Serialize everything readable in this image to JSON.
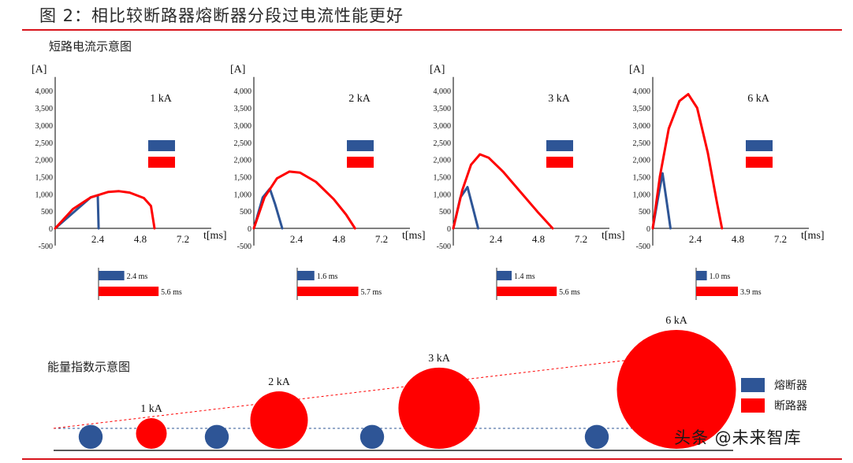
{
  "figure_title": "图 2：相比较断路器熔断器分段过电流性能更好",
  "section1_title": "短路电流示意图",
  "section2_title": "能量指数示意图",
  "watermark": "头条 @未来智库",
  "colors": {
    "fuse": "#2e5596",
    "breaker": "#ff0000",
    "accent_rule": "#d8141c",
    "axis": "#000000"
  },
  "chart_data": [
    {
      "type": "line",
      "subplot": 1,
      "label": "1 kA",
      "ylabel": "[A]",
      "xlabel": "t[ms]",
      "yticks": [
        "-500",
        "0",
        "500",
        "1,000",
        "1,500",
        "2,000",
        "2,500",
        "3,000",
        "3,500",
        "4,000"
      ],
      "ytick_values": [
        -500,
        0,
        500,
        1000,
        1500,
        2000,
        2500,
        3000,
        3500,
        4000
      ],
      "xticks": [
        "2.4",
        "4.8",
        "7.2"
      ],
      "xtick_values": [
        2.4,
        4.8,
        7.2
      ],
      "xlim": [
        0,
        8.8
      ],
      "ylim": [
        -500,
        4400
      ],
      "series": [
        {
          "x": [
            0,
            2.0,
            2.4,
            2.45
          ],
          "y": [
            0,
            900,
            960,
            0
          ]
        },
        {
          "x": [
            0,
            1.0,
            2.0,
            3.0,
            3.6,
            4.2,
            5.0,
            5.4,
            5.6
          ],
          "y": [
            0,
            560,
            900,
            1060,
            1080,
            1040,
            880,
            650,
            0
          ]
        }
      ],
      "durations": [
        {
          "value": 2.4,
          "label": "2.4 ms"
        },
        {
          "value": 5.6,
          "label": "5.6 ms"
        }
      ]
    },
    {
      "type": "line",
      "subplot": 2,
      "label": "2 kA",
      "ylabel": "[A]",
      "xlabel": "t[ms]",
      "yticks": [
        "-500",
        "0",
        "500",
        "1,000",
        "1,500",
        "2,000",
        "2,500",
        "3,000",
        "3,500",
        "4,000"
      ],
      "ytick_values": [
        -500,
        0,
        500,
        1000,
        1500,
        2000,
        2500,
        3000,
        3500,
        4000
      ],
      "xticks": [
        "2.4",
        "4.8",
        "7.2"
      ],
      "xtick_values": [
        2.4,
        4.8,
        7.2
      ],
      "xlim": [
        0,
        8.8
      ],
      "ylim": [
        -500,
        4400
      ],
      "series": [
        {
          "x": [
            0,
            0.5,
            0.9,
            1.2,
            1.6
          ],
          "y": [
            0,
            900,
            1150,
            700,
            0
          ]
        },
        {
          "x": [
            0,
            0.6,
            1.3,
            2.0,
            2.6,
            3.5,
            4.5,
            5.2,
            5.7
          ],
          "y": [
            0,
            900,
            1450,
            1650,
            1620,
            1350,
            850,
            400,
            0
          ]
        }
      ],
      "durations": [
        {
          "value": 1.6,
          "label": "1.6 ms"
        },
        {
          "value": 5.7,
          "label": "5.7 ms"
        }
      ]
    },
    {
      "type": "line",
      "subplot": 3,
      "label": "3 kA",
      "ylabel": "[A]",
      "xlabel": "t[ms]",
      "yticks": [
        "-500",
        "0",
        "500",
        "1,000",
        "1,500",
        "2,000",
        "2,500",
        "3,000",
        "3,500",
        "4,000"
      ],
      "ytick_values": [
        -500,
        0,
        500,
        1000,
        1500,
        2000,
        2500,
        3000,
        3500,
        4000
      ],
      "xticks": [
        "2.4",
        "4.8",
        "7.2"
      ],
      "xtick_values": [
        2.4,
        4.8,
        7.2
      ],
      "xlim": [
        0,
        8.8
      ],
      "ylim": [
        -500,
        4400
      ],
      "series": [
        {
          "x": [
            0,
            0.4,
            0.8,
            1.1,
            1.4
          ],
          "y": [
            0,
            900,
            1200,
            600,
            0
          ]
        },
        {
          "x": [
            0,
            0.5,
            1.0,
            1.5,
            2.0,
            2.8,
            3.8,
            4.8,
            5.6
          ],
          "y": [
            0,
            1100,
            1850,
            2150,
            2050,
            1650,
            1050,
            450,
            0
          ]
        }
      ],
      "durations": [
        {
          "value": 1.4,
          "label": "1.4 ms"
        },
        {
          "value": 5.6,
          "label": "5.6 ms"
        }
      ]
    },
    {
      "type": "line",
      "subplot": 4,
      "label": "6 kA",
      "ylabel": "[A]",
      "xlabel": "t[ms]",
      "yticks": [
        "-500",
        "0",
        "500",
        "1,000",
        "1,500",
        "2,000",
        "2,500",
        "3,000",
        "3,500",
        "4,000"
      ],
      "ytick_values": [
        -500,
        0,
        500,
        1000,
        1500,
        2000,
        2500,
        3000,
        3500,
        4000
      ],
      "xticks": [
        "2.4",
        "4.8",
        "7.2"
      ],
      "xtick_values": [
        2.4,
        4.8,
        7.2
      ],
      "xlim": [
        0,
        8.8
      ],
      "ylim": [
        -500,
        4400
      ],
      "series": [
        {
          "x": [
            0,
            0.3,
            0.55,
            0.75,
            1.0
          ],
          "y": [
            0,
            900,
            1600,
            900,
            0
          ]
        },
        {
          "x": [
            0,
            0.4,
            0.9,
            1.5,
            2.0,
            2.5,
            3.1,
            3.6,
            3.9
          ],
          "y": [
            0,
            1500,
            2900,
            3700,
            3900,
            3500,
            2200,
            800,
            0
          ]
        }
      ],
      "durations": [
        {
          "value": 1.0,
          "label": "1.0 ms"
        },
        {
          "value": 3.9,
          "label": "3.9 ms"
        }
      ]
    },
    {
      "type": "scatter",
      "subplot": "energy",
      "categories": [
        "1 kA",
        "2 kA",
        "3 kA",
        "6 kA"
      ],
      "series": [
        {
          "name": "熔断器",
          "values": [
            1,
            1,
            1,
            1
          ]
        },
        {
          "name": "断路器",
          "values": [
            1,
            3.5,
            7,
            15
          ]
        }
      ],
      "legend_position": "right"
    }
  ]
}
